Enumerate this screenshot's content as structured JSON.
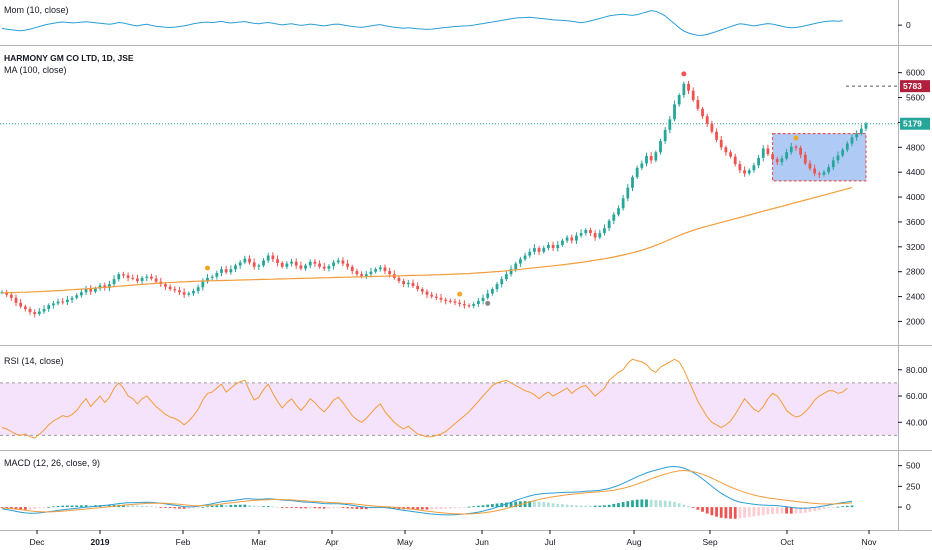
{
  "chart_data": {
    "type": "candlestick",
    "symbol_title": "HARMONY GM CO LTD, 1D, JSE",
    "overlay_title": "MA (100, close)",
    "x_axis_labels": [
      "Dec",
      "2019",
      "Feb",
      "Mar",
      "Apr",
      "May",
      "Jun",
      "Jul",
      "Aug",
      "Sep",
      "Oct",
      "Nov"
    ],
    "price": {
      "y_ticks": [
        2000,
        2400,
        2800,
        3200,
        3600,
        4000,
        4400,
        4800,
        5200,
        5600,
        6000
      ],
      "ylim": [
        1750,
        6300
      ],
      "current_price": 5179,
      "target_price": 5783,
      "closes": [
        2470,
        2430,
        2380,
        2300,
        2240,
        2200,
        2150,
        2120,
        2160,
        2200,
        2260,
        2290,
        2320,
        2310,
        2350,
        2380,
        2420,
        2470,
        2520,
        2480,
        2530,
        2580,
        2540,
        2600,
        2680,
        2760,
        2740,
        2700,
        2690,
        2650,
        2700,
        2720,
        2690,
        2640,
        2600,
        2560,
        2520,
        2500,
        2470,
        2430,
        2450,
        2490,
        2550,
        2640,
        2700,
        2720,
        2780,
        2840,
        2790,
        2840,
        2900,
        2950,
        3010,
        2950,
        2880,
        2900,
        2980,
        3060,
        3000,
        2940,
        2880,
        2930,
        2960,
        2900,
        2850,
        2900,
        2960,
        2930,
        2880,
        2850,
        2890,
        2950,
        2980,
        2930,
        2880,
        2810,
        2760,
        2730,
        2760,
        2800,
        2840,
        2870,
        2810,
        2760,
        2700,
        2650,
        2600,
        2620,
        2570,
        2520,
        2480,
        2430,
        2400,
        2380,
        2350,
        2330,
        2320,
        2300,
        2280,
        2260,
        2250,
        2280,
        2330,
        2380,
        2450,
        2520,
        2600,
        2680,
        2760,
        2840,
        2930,
        3000,
        3060,
        3120,
        3180,
        3120,
        3180,
        3230,
        3180,
        3230,
        3300,
        3350,
        3300,
        3380,
        3420,
        3470,
        3420,
        3350,
        3420,
        3500,
        3620,
        3720,
        3820,
        3980,
        4150,
        4320,
        4470,
        4540,
        4660,
        4590,
        4720,
        4900,
        5080,
        5250,
        5490,
        5640,
        5820,
        5710,
        5560,
        5420,
        5300,
        5180,
        5050,
        4920,
        4800,
        4720,
        4650,
        4530,
        4430,
        4380,
        4430,
        4510,
        4630,
        4780,
        4690,
        4610,
        4560,
        4620,
        4720,
        4810,
        4790,
        4680,
        4540,
        4460,
        4380,
        4360,
        4400,
        4480,
        4590,
        4670,
        4760,
        4860,
        4960,
        5020,
        5100,
        5179
      ],
      "ma100": [
        2460,
        2462,
        2464,
        2466,
        2468,
        2470,
        2473,
        2476,
        2480,
        2484,
        2488,
        2492,
        2496,
        2500,
        2505,
        2510,
        2515,
        2520,
        2525,
        2530,
        2536,
        2542,
        2548,
        2554,
        2560,
        2566,
        2572,
        2578,
        2584,
        2590,
        2596,
        2602,
        2607,
        2612,
        2617,
        2622,
        2626,
        2630,
        2634,
        2638,
        2641,
        2644,
        2647,
        2650,
        2652,
        2654,
        2656,
        2658,
        2660,
        2662,
        2664,
        2666,
        2668,
        2670,
        2672,
        2674,
        2676,
        2678,
        2680,
        2682,
        2684,
        2686,
        2688,
        2690,
        2692,
        2694,
        2696,
        2698,
        2700,
        2702,
        2704,
        2706,
        2708,
        2710,
        2712,
        2714,
        2716,
        2718,
        2720,
        2722,
        2724,
        2726,
        2728,
        2730,
        2732,
        2734,
        2736,
        2738,
        2740,
        2742,
        2744,
        2746,
        2748,
        2750,
        2752,
        2755,
        2758,
        2761,
        2764,
        2767,
        2770,
        2775,
        2780,
        2785,
        2790,
        2796,
        2802,
        2808,
        2815,
        2822,
        2830,
        2838,
        2846,
        2854,
        2862,
        2870,
        2878,
        2886,
        2894,
        2902,
        2910,
        2920,
        2930,
        2940,
        2950,
        2960,
        2972,
        2984,
        2996,
        3008,
        3022,
        3036,
        3052,
        3068,
        3086,
        3104,
        3124,
        3146,
        3170,
        3196,
        3224,
        3254,
        3286,
        3318,
        3350,
        3382,
        3412,
        3440,
        3466,
        3490,
        3512,
        3532,
        3552,
        3572,
        3592,
        3612,
        3632,
        3652,
        3672,
        3692,
        3712,
        3732,
        3752,
        3772,
        3792,
        3812,
        3832,
        3852,
        3872,
        3892,
        3912,
        3932,
        3952,
        3972,
        3992,
        4012,
        4032,
        4052,
        4072,
        4092,
        4112,
        4132,
        4152
      ]
    },
    "momentum": {
      "title": "Mom (10, close)",
      "y_ticks": [
        0
      ],
      "ylim": [
        -900,
        1300
      ],
      "values": [
        -250,
        -300,
        -350,
        -400,
        -420,
        -380,
        -300,
        -200,
        -100,
        0,
        80,
        150,
        200,
        240,
        210,
        170,
        190,
        230,
        260,
        220,
        180,
        140,
        110,
        70,
        120,
        200,
        160,
        80,
        0,
        -60,
        20,
        60,
        -20,
        -80,
        -120,
        -160,
        -180,
        -150,
        -100,
        -60,
        20,
        100,
        160,
        210,
        230,
        190,
        240,
        280,
        210,
        160,
        200,
        240,
        270,
        200,
        130,
        100,
        160,
        200,
        140,
        80,
        20,
        60,
        100,
        40,
        -20,
        20,
        80,
        40,
        -20,
        -60,
        0,
        60,
        80,
        20,
        -40,
        -100,
        -140,
        -160,
        -120,
        -60,
        0,
        40,
        -40,
        -100,
        -160,
        -200,
        -240,
        -200,
        -240,
        -280,
        -300,
        -320,
        -300,
        -260,
        -220,
        -180,
        -140,
        -100,
        -80,
        -60,
        -40,
        0,
        60,
        120,
        180,
        240,
        300,
        360,
        420,
        480,
        540,
        560,
        580,
        600,
        560,
        520,
        480,
        440,
        400,
        380,
        360,
        340,
        300,
        240,
        180,
        240,
        320,
        420,
        500,
        600,
        700,
        760,
        800,
        820,
        780,
        740,
        800,
        900,
        1000,
        1100,
        1050,
        900,
        700,
        400,
        100,
        -200,
        -450,
        -600,
        -700,
        -760,
        -780,
        -700,
        -600,
        -480,
        -360,
        -240,
        -120,
        0,
        100,
        60,
        0,
        -60,
        0,
        60,
        120,
        80,
        0,
        -80,
        -160,
        -200,
        -180,
        -120,
        -40,
        40,
        120,
        200,
        260,
        300,
        320,
        300,
        330
      ]
    },
    "rsi": {
      "title": "RSI (14, close)",
      "y_ticks": [
        40.0,
        60.0,
        80.0
      ],
      "ylim": [
        25,
        92
      ],
      "band": [
        30,
        70
      ],
      "values": [
        36,
        35,
        33,
        31,
        30,
        31,
        29,
        28,
        31,
        34,
        38,
        41,
        43,
        45,
        44,
        46,
        49,
        54,
        58,
        52,
        56,
        60,
        55,
        59,
        66,
        70,
        66,
        60,
        58,
        54,
        58,
        60,
        56,
        52,
        49,
        46,
        44,
        43,
        41,
        38,
        41,
        45,
        50,
        57,
        62,
        63,
        66,
        69,
        63,
        66,
        69,
        71,
        72,
        64,
        57,
        59,
        65,
        69,
        62,
        56,
        51,
        55,
        58,
        53,
        49,
        53,
        58,
        55,
        51,
        48,
        52,
        57,
        59,
        55,
        50,
        45,
        42,
        40,
        43,
        47,
        51,
        54,
        48,
        44,
        40,
        37,
        35,
        37,
        34,
        31,
        30,
        29,
        29,
        30,
        31,
        33,
        36,
        39,
        42,
        45,
        48,
        52,
        56,
        60,
        64,
        68,
        70,
        71,
        72,
        70,
        68,
        66,
        64,
        63,
        61,
        58,
        61,
        63,
        60,
        62,
        64,
        66,
        62,
        65,
        67,
        68,
        64,
        60,
        63,
        66,
        72,
        75,
        78,
        80,
        85,
        88,
        87,
        86,
        84,
        80,
        78,
        82,
        84,
        86,
        88,
        86,
        80,
        72,
        64,
        56,
        50,
        44,
        40,
        38,
        36,
        38,
        41,
        46,
        52,
        58,
        54,
        50,
        48,
        52,
        58,
        62,
        60,
        55,
        49,
        46,
        44,
        45,
        48,
        52,
        57,
        60,
        62,
        64,
        64,
        62,
        63,
        66
      ]
    },
    "macd": {
      "title": "MACD (12, 26, close, 9)",
      "y_ticks": [
        0,
        250,
        500
      ],
      "ylim": [
        -180,
        580
      ],
      "macd": [
        -20,
        -30,
        -40,
        -52,
        -62,
        -70,
        -74,
        -74,
        -70,
        -64,
        -56,
        -48,
        -40,
        -32,
        -26,
        -20,
        -14,
        -8,
        0,
        4,
        10,
        16,
        20,
        26,
        34,
        42,
        48,
        52,
        54,
        54,
        56,
        58,
        56,
        52,
        46,
        38,
        30,
        22,
        14,
        6,
        2,
        4,
        10,
        20,
        30,
        40,
        52,
        64,
        70,
        76,
        84,
        92,
        100,
        100,
        96,
        94,
        96,
        100,
        98,
        92,
        84,
        80,
        78,
        72,
        64,
        60,
        58,
        54,
        48,
        42,
        40,
        40,
        40,
        36,
        30,
        22,
        12,
        4,
        -2,
        -4,
        -4,
        -2,
        -6,
        -12,
        -20,
        -30,
        -40,
        -46,
        -54,
        -62,
        -70,
        -78,
        -84,
        -88,
        -92,
        -94,
        -94,
        -92,
        -88,
        -84,
        -78,
        -70,
        -60,
        -48,
        -34,
        -18,
        0,
        18,
        38,
        58,
        80,
        100,
        118,
        134,
        148,
        156,
        164,
        168,
        170,
        172,
        176,
        178,
        180,
        182,
        186,
        190,
        194,
        198,
        204,
        212,
        224,
        242,
        262,
        286,
        312,
        340,
        366,
        390,
        412,
        430,
        446,
        462,
        476,
        486,
        490,
        484,
        470,
        448,
        418,
        382,
        340,
        296,
        250,
        206,
        166,
        132,
        102,
        78,
        60,
        50,
        42,
        34,
        28,
        24,
        22,
        20,
        18,
        12,
        4,
        -4,
        -10,
        -14,
        -14,
        -10,
        -4,
        4,
        14,
        24,
        34,
        44,
        54,
        62,
        70
      ],
      "signal": [
        -10,
        -14,
        -18,
        -24,
        -31,
        -39,
        -46,
        -52,
        -56,
        -58,
        -58,
        -56,
        -53,
        -49,
        -44,
        -39,
        -34,
        -29,
        -23,
        -17,
        -12,
        -7,
        -2,
        3,
        9,
        15,
        21,
        27,
        32,
        36,
        40,
        44,
        46,
        47,
        47,
        45,
        42,
        38,
        33,
        27,
        22,
        18,
        17,
        18,
        20,
        24,
        30,
        37,
        44,
        50,
        57,
        64,
        71,
        77,
        81,
        84,
        86,
        89,
        91,
        91,
        90,
        88,
        86,
        83,
        79,
        75,
        71,
        68,
        64,
        60,
        56,
        53,
        50,
        47,
        44,
        40,
        35,
        29,
        23,
        17,
        12,
        8,
        5,
        2,
        -2,
        -7,
        -14,
        -20,
        -27,
        -34,
        -41,
        -48,
        -55,
        -62,
        -68,
        -73,
        -77,
        -80,
        -82,
        -83,
        -82,
        -80,
        -76,
        -70,
        -63,
        -54,
        -43,
        -31,
        -17,
        -2,
        14,
        30,
        46,
        62,
        77,
        91,
        103,
        114,
        124,
        133,
        141,
        148,
        155,
        161,
        167,
        172,
        177,
        181,
        186,
        191,
        197,
        204,
        214,
        226,
        241,
        258,
        277,
        298,
        320,
        342,
        362,
        381,
        398,
        414,
        427,
        438,
        441,
        437,
        428,
        414,
        396,
        374,
        349,
        322,
        295,
        268,
        242,
        219,
        197,
        178,
        161,
        146,
        133,
        121,
        111,
        103,
        96,
        89,
        82,
        75,
        68,
        61,
        55,
        49,
        44,
        40,
        38,
        37,
        38,
        40,
        43,
        47,
        51
      ]
    }
  }
}
